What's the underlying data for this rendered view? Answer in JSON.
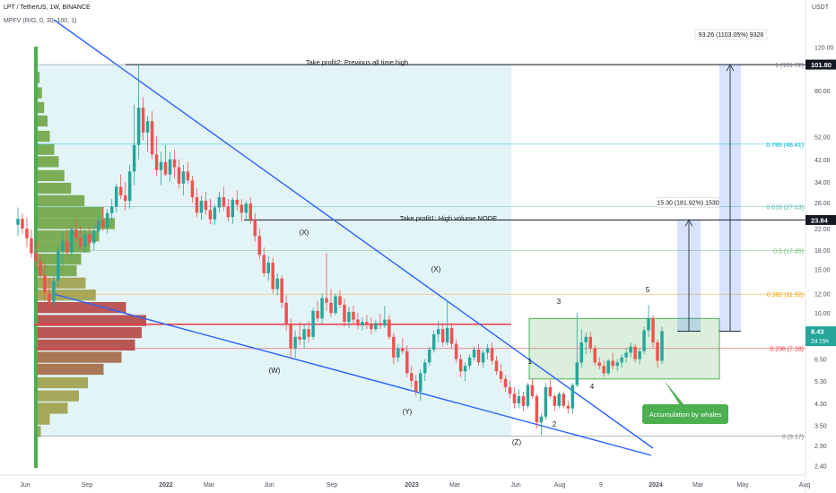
{
  "header": {
    "symbol": "LPT / TetherUS, 1W, BINANCE",
    "indicator": "MPFV (R/G, 0, 30, 100, 1)",
    "axis_unit": "USDT"
  },
  "colors": {
    "up": "#26a69a",
    "down": "#ef5350",
    "trendline": "#2962ff",
    "zone": "#e3f4f7",
    "box": "#4caf50",
    "label_green": "#4caf50",
    "poc": "#f23645"
  },
  "chart_data": {
    "type": "candlestick",
    "y_scale": "log",
    "ylim": [
      2.2,
      140
    ],
    "y_ticks": [
      "120.00",
      "80.00",
      "52.00",
      "42.00",
      "34.00",
      "28.00",
      "22.00",
      "18.00",
      "15.00",
      "12.00",
      "10.00",
      "8.00",
      "6.50",
      "5.30",
      "4.30",
      "3.50",
      "2.90",
      "2.40"
    ],
    "x_ticks": [
      "Jun",
      "Sep",
      "2022",
      "Mar",
      "Jun",
      "Sep",
      "2023",
      "Mar",
      "Jun",
      "Aug",
      "9",
      "2024",
      "Mar",
      "May",
      "Aug"
    ],
    "price_labels": [
      {
        "value": 101.8,
        "text": "101.80",
        "color": "#131722"
      },
      {
        "value": 23.84,
        "text": "23.84",
        "color": "#131722"
      },
      {
        "value": 8.43,
        "text": "8.43",
        "sub": "2d 15h",
        "color": "#26a69a"
      }
    ],
    "fib_levels": [
      {
        "value": 101.72,
        "text": "1 (101.72)",
        "color": "#787b86"
      },
      {
        "value": 48.41,
        "text": "0.786 (48.41)",
        "color": "#00bcd4"
      },
      {
        "value": 27.03,
        "text": "0.618 (27.03)",
        "color": "#4db6ac"
      },
      {
        "value": 17.95,
        "text": "0.5 (17.95)",
        "color": "#66bb6a"
      },
      {
        "value": 11.92,
        "text": "0.382 (11.92)",
        "color": "#ff9800"
      },
      {
        "value": 7.18,
        "text": "0.236 (7.18)",
        "color": "#f23645"
      },
      {
        "value": 3.17,
        "text": "0 (3.17)",
        "color": "#787b86"
      }
    ],
    "annotations": {
      "tp2": "Take profit2: Previous all time high",
      "tp1": "Take profit1: High volume NODE",
      "accumulation": "Accumulation by whales",
      "measure_small": "15.30 (181.92%) 1530",
      "measure_big": "93.26 (1103.05%) 9326"
    },
    "wave_labels": [
      "(X)",
      "(X)",
      "(W)",
      "(Y)",
      "(Z)",
      "1",
      "2",
      "3",
      "4",
      "5"
    ],
    "poc_price": 9.0,
    "tp2_price": 101.72,
    "tp1_price": 23.84,
    "accumulation_box": [
      5.4,
      9.5
    ],
    "current_price": 8.43,
    "ohlc": [
      [
        22.8,
        26.8,
        20.5,
        24.1
      ],
      [
        24.1,
        25.4,
        21.0,
        22.0
      ],
      [
        22.0,
        24.5,
        18.5,
        20.1
      ],
      [
        20.1,
        21.8,
        16.8,
        17.5
      ],
      [
        17.5,
        19.6,
        15.2,
        16.2
      ],
      [
        16.2,
        17.4,
        13.8,
        14.2
      ],
      [
        14.2,
        15.8,
        11.2,
        12.0
      ],
      [
        12.0,
        13.8,
        10.4,
        11.1
      ],
      [
        11.1,
        14.2,
        10.6,
        13.5
      ],
      [
        13.5,
        18.5,
        12.8,
        17.8
      ],
      [
        17.8,
        21.5,
        15.6,
        19.6
      ],
      [
        19.6,
        21.8,
        17.0,
        17.6
      ],
      [
        17.6,
        22.5,
        16.6,
        21.8
      ],
      [
        21.8,
        24.2,
        19.5,
        20.2
      ],
      [
        20.2,
        22.5,
        18.1,
        18.6
      ],
      [
        18.6,
        21.8,
        17.5,
        20.8
      ],
      [
        20.8,
        22.4,
        18.6,
        19.2
      ],
      [
        19.2,
        22.6,
        18.0,
        21.5
      ],
      [
        21.5,
        25.0,
        20.5,
        23.8
      ],
      [
        23.8,
        27.0,
        21.5,
        22.3
      ],
      [
        22.3,
        26.4,
        21.0,
        25.4
      ],
      [
        25.4,
        29.0,
        23.5,
        27.0
      ],
      [
        27.0,
        33.5,
        25.5,
        32.5
      ],
      [
        32.5,
        36.5,
        29.0,
        30.0
      ],
      [
        30.0,
        34.0,
        26.0,
        28.5
      ],
      [
        28.5,
        40.0,
        26.5,
        37.5
      ],
      [
        37.5,
        70.0,
        33.0,
        48.0
      ],
      [
        48.0,
        102.0,
        42.0,
        68.0
      ],
      [
        68.0,
        75.0,
        50.0,
        54.0
      ],
      [
        54.0,
        63.0,
        45.0,
        60.0
      ],
      [
        60.0,
        66.0,
        42.0,
        44.0
      ],
      [
        44.0,
        52.0,
        36.0,
        38.0
      ],
      [
        38.0,
        45.0,
        33.0,
        41.0
      ],
      [
        41.0,
        48.0,
        36.0,
        36.5
      ],
      [
        36.5,
        45.0,
        34.0,
        42.0
      ],
      [
        42.0,
        46.0,
        35.0,
        39.0
      ],
      [
        39.0,
        42.0,
        32.0,
        33.5
      ],
      [
        33.5,
        40.0,
        30.0,
        37.5
      ],
      [
        37.5,
        41.0,
        33.5,
        34.5
      ],
      [
        34.5,
        36.0,
        28.0,
        29.5
      ],
      [
        29.5,
        32.0,
        24.5,
        25.5
      ],
      [
        25.5,
        30.0,
        23.8,
        28.5
      ],
      [
        28.5,
        31.0,
        25.0,
        26.2
      ],
      [
        26.2,
        29.0,
        23.0,
        24.0
      ],
      [
        24.0,
        27.5,
        22.8,
        26.8
      ],
      [
        26.8,
        31.0,
        25.5,
        29.5
      ],
      [
        29.5,
        32.5,
        26.0,
        27.0
      ],
      [
        27.0,
        29.0,
        23.5,
        24.5
      ],
      [
        24.5,
        29.5,
        23.0,
        28.8
      ],
      [
        28.8,
        31.5,
        26.0,
        27.5
      ],
      [
        27.5,
        29.0,
        23.5,
        25.5
      ],
      [
        25.5,
        28.5,
        24.0,
        27.8
      ],
      [
        27.8,
        29.5,
        23.0,
        24.0
      ],
      [
        24.0,
        25.5,
        19.5,
        20.5
      ],
      [
        20.5,
        22.0,
        16.5,
        17.2
      ],
      [
        17.2,
        18.5,
        14.0,
        14.5
      ],
      [
        14.5,
        17.0,
        13.5,
        16.0
      ],
      [
        16.0,
        16.8,
        12.0,
        12.5
      ],
      [
        12.5,
        14.5,
        11.8,
        13.8
      ],
      [
        13.8,
        14.2,
        10.5,
        11.0
      ],
      [
        11.0,
        11.8,
        8.5,
        9.0
      ],
      [
        9.0,
        9.5,
        6.5,
        7.2
      ],
      [
        7.2,
        8.5,
        6.6,
        8.0
      ],
      [
        8.0,
        9.2,
        7.4,
        7.8
      ],
      [
        7.8,
        9.0,
        7.2,
        8.6
      ],
      [
        8.6,
        9.3,
        7.6,
        8.0
      ],
      [
        8.0,
        10.5,
        7.8,
        10.2
      ],
      [
        10.2,
        11.2,
        9.2,
        9.5
      ],
      [
        9.5,
        12.0,
        9.0,
        11.5
      ],
      [
        11.5,
        17.5,
        10.2,
        11.0
      ],
      [
        11.0,
        12.5,
        9.6,
        10.0
      ],
      [
        10.0,
        12.0,
        9.8,
        11.7
      ],
      [
        11.7,
        12.4,
        10.5,
        10.8
      ],
      [
        10.8,
        11.4,
        8.8,
        9.2
      ],
      [
        9.2,
        10.6,
        8.7,
        10.1
      ],
      [
        10.1,
        10.7,
        9.0,
        9.4
      ],
      [
        9.4,
        10.0,
        8.6,
        8.9
      ],
      [
        8.9,
        9.6,
        8.5,
        9.2
      ],
      [
        9.2,
        9.8,
        8.6,
        9.0
      ],
      [
        9.0,
        9.6,
        8.2,
        8.6
      ],
      [
        8.6,
        9.4,
        8.4,
        9.1
      ],
      [
        9.1,
        9.9,
        8.6,
        8.9
      ],
      [
        8.9,
        10.7,
        8.7,
        9.4
      ],
      [
        9.4,
        9.8,
        7.8,
        8.0
      ],
      [
        8.0,
        8.3,
        6.2,
        6.6
      ],
      [
        6.6,
        7.5,
        6.3,
        7.2
      ],
      [
        7.2,
        7.9,
        6.8,
        7.0
      ],
      [
        7.0,
        7.4,
        5.5,
        5.7
      ],
      [
        5.7,
        6.1,
        5.0,
        5.3
      ],
      [
        5.3,
        5.6,
        4.6,
        4.8
      ],
      [
        4.8,
        5.9,
        4.4,
        5.7
      ],
      [
        5.7,
        6.5,
        5.3,
        6.3
      ],
      [
        6.3,
        7.3,
        6.1,
        7.1
      ],
      [
        7.1,
        8.5,
        6.9,
        8.2
      ],
      [
        8.2,
        9.3,
        7.6,
        8.6
      ],
      [
        8.6,
        9.1,
        7.3,
        7.6
      ],
      [
        7.6,
        11.2,
        7.4,
        8.7
      ],
      [
        8.7,
        9.1,
        7.2,
        7.5
      ],
      [
        7.5,
        7.8,
        6.3,
        6.5
      ],
      [
        6.5,
        6.8,
        5.5,
        5.8
      ],
      [
        5.8,
        6.3,
        5.3,
        6.1
      ],
      [
        6.1,
        6.8,
        5.9,
        6.6
      ],
      [
        6.6,
        7.3,
        6.4,
        7.1
      ],
      [
        7.1,
        7.5,
        6.1,
        6.3
      ],
      [
        6.3,
        7.1,
        6.0,
        6.9
      ],
      [
        6.9,
        7.5,
        6.5,
        7.2
      ],
      [
        7.2,
        7.6,
        6.2,
        6.4
      ],
      [
        6.4,
        6.7,
        5.6,
        5.8
      ],
      [
        5.8,
        6.2,
        5.2,
        5.4
      ],
      [
        5.4,
        5.6,
        4.8,
        5.0
      ],
      [
        5.0,
        5.3,
        4.5,
        4.7
      ],
      [
        4.7,
        5.0,
        4.1,
        4.3
      ],
      [
        4.3,
        4.9,
        4.1,
        4.6
      ],
      [
        4.6,
        4.8,
        4.0,
        4.2
      ],
      [
        4.2,
        5.2,
        4.1,
        5.1
      ],
      [
        5.1,
        5.4,
        4.5,
        4.6
      ],
      [
        4.6,
        4.7,
        3.4,
        3.6
      ],
      [
        3.6,
        3.9,
        3.2,
        3.8
      ],
      [
        3.8,
        5.2,
        3.7,
        5.0
      ],
      [
        5.0,
        5.4,
        4.5,
        4.6
      ],
      [
        4.6,
        4.7,
        4.0,
        4.2
      ],
      [
        4.2,
        4.8,
        4.1,
        4.7
      ],
      [
        4.7,
        4.8,
        4.1,
        4.2
      ],
      [
        4.2,
        4.4,
        3.9,
        4.1
      ],
      [
        4.1,
        5.2,
        3.9,
        5.1
      ],
      [
        5.1,
        10.0,
        5.0,
        6.3
      ],
      [
        6.3,
        8.6,
        6.0,
        7.6
      ],
      [
        7.6,
        8.3,
        6.8,
        8.0
      ],
      [
        8.0,
        8.4,
        6.9,
        7.2
      ],
      [
        7.2,
        7.4,
        6.1,
        6.3
      ],
      [
        6.3,
        6.6,
        5.9,
        6.1
      ],
      [
        6.1,
        6.4,
        5.5,
        5.7
      ],
      [
        5.7,
        6.5,
        5.6,
        6.4
      ],
      [
        6.4,
        6.9,
        5.9,
        6.1
      ],
      [
        6.1,
        6.5,
        5.8,
        6.3
      ],
      [
        6.3,
        6.8,
        6.0,
        6.6
      ],
      [
        6.6,
        7.2,
        6.3,
        6.9
      ],
      [
        6.9,
        7.6,
        6.6,
        7.3
      ],
      [
        7.3,
        7.5,
        6.3,
        6.5
      ],
      [
        6.5,
        7.2,
        6.2,
        7.0
      ],
      [
        7.0,
        8.8,
        6.8,
        8.5
      ],
      [
        8.5,
        10.8,
        8.0,
        9.5
      ],
      [
        9.5,
        9.8,
        7.2,
        7.6
      ],
      [
        7.6,
        7.8,
        6.0,
        6.4
      ],
      [
        6.4,
        8.8,
        6.2,
        8.43
      ]
    ],
    "volume_profile": [
      {
        "price": 90,
        "width": 0.05
      },
      {
        "price": 78,
        "width": 0.07
      },
      {
        "price": 68,
        "width": 0.09
      },
      {
        "price": 60,
        "width": 0.12
      },
      {
        "price": 52,
        "width": 0.14
      },
      {
        "price": 46,
        "width": 0.18
      },
      {
        "price": 41,
        "width": 0.22
      },
      {
        "price": 36,
        "width": 0.27
      },
      {
        "price": 32,
        "width": 0.33
      },
      {
        "price": 28.5,
        "width": 0.45
      },
      {
        "price": 25.5,
        "width": 0.62
      },
      {
        "price": 23,
        "width": 0.72
      },
      {
        "price": 20.5,
        "width": 0.58
      },
      {
        "price": 18.5,
        "width": 0.5
      },
      {
        "price": 16.5,
        "width": 0.42
      },
      {
        "price": 14.8,
        "width": 0.38
      },
      {
        "price": 13.2,
        "width": 0.46
      },
      {
        "price": 11.8,
        "width": 0.55
      },
      {
        "price": 10.5,
        "width": 0.82
      },
      {
        "price": 9.3,
        "width": 1.0
      },
      {
        "price": 8.3,
        "width": 0.96
      },
      {
        "price": 7.4,
        "width": 0.9
      },
      {
        "price": 6.6,
        "width": 0.78
      },
      {
        "price": 5.9,
        "width": 0.62
      },
      {
        "price": 5.2,
        "width": 0.48
      },
      {
        "price": 4.6,
        "width": 0.4
      },
      {
        "price": 4.1,
        "width": 0.3
      },
      {
        "price": 3.7,
        "width": 0.14
      },
      {
        "price": 3.3,
        "width": 0.06
      }
    ]
  }
}
